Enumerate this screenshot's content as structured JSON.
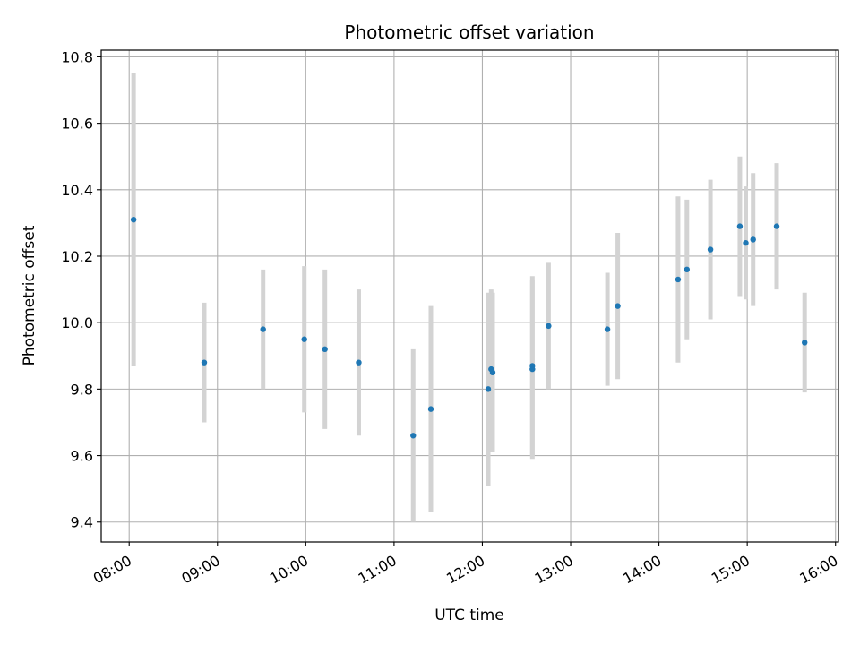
{
  "chart_data": {
    "type": "scatter",
    "title": "Photometric offset variation",
    "xlabel": "UTC time",
    "ylabel": "Photometric offset",
    "x_ticks": [
      "08:00",
      "09:00",
      "10:00",
      "11:00",
      "12:00",
      "13:00",
      "14:00",
      "15:00",
      "16:00"
    ],
    "y_ticks": [
      "9.4",
      "9.6",
      "9.8",
      "10.0",
      "10.2",
      "10.4",
      "10.6",
      "10.8"
    ],
    "xlim": [
      "07:41",
      "16:02"
    ],
    "ylim": [
      9.34,
      10.82
    ],
    "grid": true,
    "colors": {
      "points": "#1f77b4",
      "errorbars": "#d3d3d3",
      "grid": "#b0b0b0"
    },
    "series": [
      {
        "points": [
          {
            "x": "08:03",
            "y": 10.31,
            "yerr": 0.44
          },
          {
            "x": "08:51",
            "y": 9.88,
            "yerr": 0.18
          },
          {
            "x": "09:31",
            "y": 9.98,
            "yerr": 0.18
          },
          {
            "x": "09:59",
            "y": 9.95,
            "yerr": 0.22
          },
          {
            "x": "10:13",
            "y": 9.92,
            "yerr": 0.24
          },
          {
            "x": "10:36",
            "y": 9.88,
            "yerr": 0.22
          },
          {
            "x": "11:13",
            "y": 9.66,
            "yerr": 0.26
          },
          {
            "x": "11:25",
            "y": 9.74,
            "yerr": 0.31
          },
          {
            "x": "12:04",
            "y": 9.8,
            "yerr": 0.29
          },
          {
            "x": "12:06",
            "y": 9.86,
            "yerr": 0.24
          },
          {
            "x": "12:07",
            "y": 9.85,
            "yerr": 0.24
          },
          {
            "x": "12:34",
            "y": 9.87,
            "yerr": 0.27
          },
          {
            "x": "12:34",
            "y": 9.86,
            "yerr": 0.27
          },
          {
            "x": "12:45",
            "y": 9.99,
            "yerr": 0.19
          },
          {
            "x": "13:25",
            "y": 9.98,
            "yerr": 0.17
          },
          {
            "x": "13:32",
            "y": 10.05,
            "yerr": 0.22
          },
          {
            "x": "14:13",
            "y": 10.13,
            "yerr": 0.25
          },
          {
            "x": "14:19",
            "y": 10.16,
            "yerr": 0.21
          },
          {
            "x": "14:35",
            "y": 10.22,
            "yerr": 0.21
          },
          {
            "x": "14:55",
            "y": 10.29,
            "yerr": 0.21
          },
          {
            "x": "14:59",
            "y": 10.24,
            "yerr": 0.17
          },
          {
            "x": "15:04",
            "y": 10.25,
            "yerr": 0.2
          },
          {
            "x": "15:20",
            "y": 10.29,
            "yerr": 0.19
          },
          {
            "x": "15:39",
            "y": 9.94,
            "yerr": 0.15
          }
        ]
      }
    ]
  }
}
